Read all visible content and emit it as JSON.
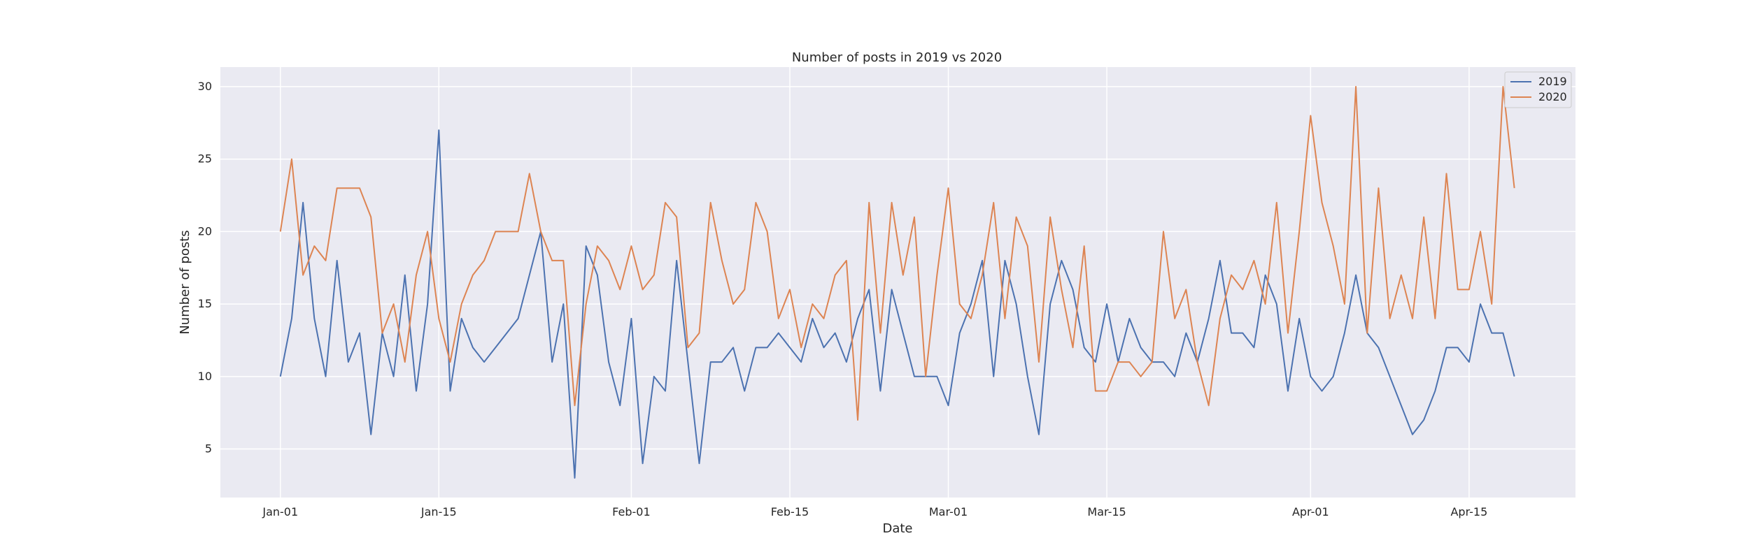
{
  "chart_data": {
    "type": "line",
    "title": "Number of posts in 2019 vs 2020",
    "xlabel": "Date",
    "ylabel": "Number of posts",
    "x_tick_labels": [
      "Jan-01",
      "Jan-15",
      "Feb-01",
      "Feb-15",
      "Mar-01",
      "Mar-15",
      "Apr-01",
      "Apr-15"
    ],
    "x_tick_days": [
      0,
      14,
      31,
      45,
      59,
      73,
      91,
      105
    ],
    "y_ticks": [
      5,
      10,
      15,
      20,
      25,
      30
    ],
    "xlim": [
      -5.3,
      114.4
    ],
    "ylim": [
      1.65,
      31.35
    ],
    "grid": true,
    "legend_position": "top-right",
    "x_unit": "day-of-year",
    "x": [
      0,
      1,
      2,
      3,
      4,
      5,
      6,
      7,
      8,
      9,
      10,
      11,
      12,
      13,
      14,
      15,
      16,
      17,
      18,
      19,
      20,
      21,
      22,
      23,
      24,
      25,
      26,
      27,
      28,
      29,
      30,
      31,
      32,
      33,
      34,
      35,
      36,
      37,
      38,
      39,
      40,
      41,
      42,
      43,
      44,
      45,
      46,
      47,
      48,
      49,
      50,
      51,
      52,
      53,
      54,
      55,
      56,
      57,
      58,
      59,
      60,
      61,
      62,
      63,
      64,
      65,
      66,
      67,
      68,
      69,
      70,
      71,
      72,
      73,
      74,
      75,
      76,
      77,
      78,
      79,
      80,
      81,
      82,
      83,
      84,
      85,
      86,
      87,
      88,
      89,
      90,
      91,
      92,
      93,
      94,
      95,
      96,
      97,
      98,
      99,
      100,
      101,
      102,
      103,
      104,
      105,
      106,
      107,
      108,
      109,
      110
    ],
    "series": [
      {
        "name": "2019",
        "color": "#4c72b0",
        "values": [
          10,
          14,
          22,
          14,
          10,
          18,
          11,
          13,
          6,
          13,
          10,
          17,
          9,
          15,
          27,
          9,
          14,
          12,
          11,
          12,
          13,
          14,
          17,
          20,
          11,
          15,
          3,
          19,
          17,
          11,
          8,
          14,
          4,
          10,
          9,
          18,
          11,
          4,
          11,
          11,
          12,
          9,
          12,
          12,
          13,
          12,
          11,
          14,
          12,
          13,
          11,
          14,
          16,
          9,
          16,
          13,
          10,
          10,
          10,
          8,
          13,
          15,
          18,
          10,
          18,
          15,
          10,
          6,
          15,
          18,
          16,
          12,
          11,
          15,
          11,
          14,
          12,
          11,
          11,
          10,
          13,
          11,
          14,
          18,
          13,
          13,
          12,
          17,
          15,
          9,
          14,
          10,
          9,
          10,
          13,
          17,
          13,
          12,
          10,
          8,
          6,
          7,
          9,
          12,
          12,
          11,
          15,
          13,
          13,
          10,
          null
        ],
        "values_2020": null
      },
      {
        "name": "2020",
        "color": "#dd8452",
        "values": [
          20,
          25,
          17,
          19,
          18,
          23,
          23,
          23,
          21,
          13,
          15,
          11,
          17,
          20,
          14,
          11,
          15,
          17,
          18,
          20,
          20,
          20,
          24,
          20,
          18,
          18,
          8,
          15,
          19,
          18,
          16,
          19,
          16,
          17,
          22,
          21,
          12,
          13,
          22,
          18,
          15,
          16,
          22,
          20,
          14,
          16,
          12,
          15,
          14,
          17,
          18,
          7,
          22,
          13,
          22,
          17,
          21,
          10,
          17,
          23,
          15,
          14,
          17,
          22,
          14,
          21,
          19,
          11,
          21,
          16,
          12,
          19,
          9,
          9,
          11,
          11,
          10,
          11,
          20,
          14,
          16,
          11,
          8,
          14,
          17,
          16,
          18,
          15,
          22,
          13,
          20,
          28,
          22,
          19,
          15,
          30,
          13,
          23,
          14,
          17,
          14,
          21,
          14,
          24,
          16,
          16,
          20,
          15,
          30,
          23,
          null
        ]
      }
    ]
  }
}
